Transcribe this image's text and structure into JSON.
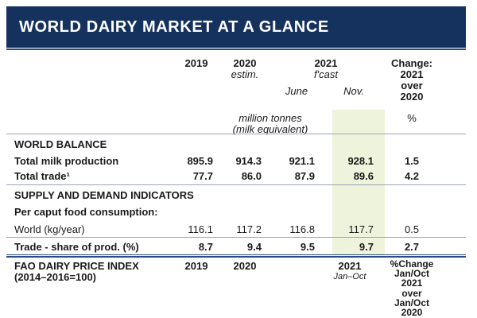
{
  "title": "WORLD DAIRY MARKET AT A GLANCE",
  "header": {
    "y2019": "2019",
    "y2020": "2020",
    "y2020_note": "estim.",
    "y2021": "2021",
    "y2021_note": "f'cast",
    "june": "June",
    "nov": "Nov.",
    "change_l1": "Change:",
    "change_l2": "2021",
    "change_l3": "over",
    "change_l4": "2020"
  },
  "units": {
    "line1": "million tonnes",
    "line2": "(milk equivalent)",
    "pct": "%"
  },
  "world_balance": {
    "heading": "WORLD BALANCE",
    "rows": [
      {
        "label": "Total milk production",
        "v2019": "895.9",
        "v2020": "914.3",
        "june": "921.1",
        "nov": "928.1",
        "change": "1.5"
      },
      {
        "label": "Total trade¹",
        "v2019": "77.7",
        "v2020": "86.0",
        "june": "87.9",
        "nov": "89.6",
        "change": "4.2"
      }
    ]
  },
  "supply_demand": {
    "heading": "SUPPLY AND DEMAND INDICATORS",
    "subheading": "Per caput food consumption:",
    "world": {
      "label": "World (kg/year)",
      "v2019": "116.1",
      "v2020": "117.2",
      "june": "116.8",
      "nov": "117.7",
      "change": "0.5"
    },
    "trade_share": {
      "label": "Trade - share of prod. (%)",
      "v2019": "8.7",
      "v2020": "9.4",
      "june": "9.5",
      "nov": "9.7",
      "change": "2.7"
    }
  },
  "price_index": {
    "label_l1": "FAO DAIRY PRICE INDEX",
    "label_l2": "(2014–2016=100)",
    "y2019": "2019",
    "y2020": "2020",
    "y2021": "2021",
    "y2021_note": "Jan–Oct",
    "change_l1": "%Change",
    "change_l2": "Jan/Oct",
    "change_l3": "2021",
    "change_l4": "over",
    "change_l5": "Jan/Oct",
    "change_l6": "2020"
  }
}
